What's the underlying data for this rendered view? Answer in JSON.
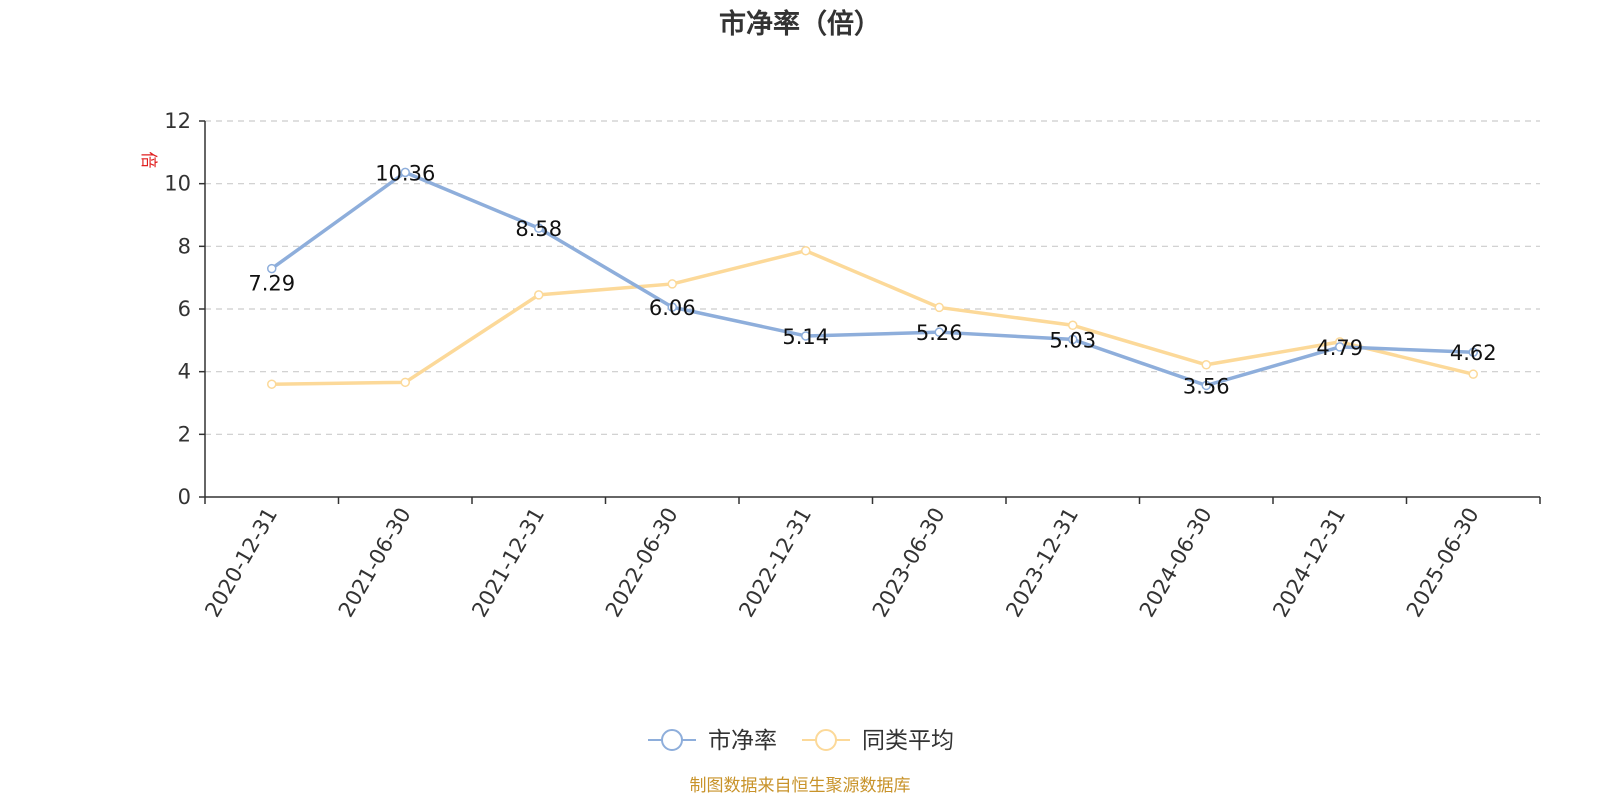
{
  "chart_data": {
    "type": "line",
    "title": "市净率（倍）",
    "ylabel": "倍",
    "xlabel": "",
    "categories": [
      "2020-12-31",
      "2021-06-30",
      "2021-12-31",
      "2022-06-30",
      "2022-12-31",
      "2023-06-30",
      "2023-12-31",
      "2024-06-30",
      "2024-12-31",
      "2025-06-30"
    ],
    "ylim": [
      0,
      12
    ],
    "yticks": [
      0,
      2,
      4,
      6,
      8,
      10,
      12
    ],
    "grid": true,
    "legend_position": "bottom",
    "series": [
      {
        "name": "市净率",
        "color": "#8eaedb",
        "values": [
          7.29,
          10.36,
          8.58,
          6.06,
          5.14,
          5.26,
          5.03,
          3.56,
          4.79,
          4.62
        ],
        "labels": [
          "7.29",
          "10.36",
          "8.58",
          "6.06",
          "5.14",
          "5.26",
          "5.03",
          "3.56",
          "4.79",
          "4.62"
        ]
      },
      {
        "name": "同类平均",
        "color": "#fcd999",
        "values": [
          3.6,
          3.66,
          6.45,
          6.8,
          7.86,
          6.05,
          5.48,
          4.22,
          4.95,
          3.92
        ]
      }
    ],
    "source": "制图数据来自恒生聚源数据库"
  }
}
